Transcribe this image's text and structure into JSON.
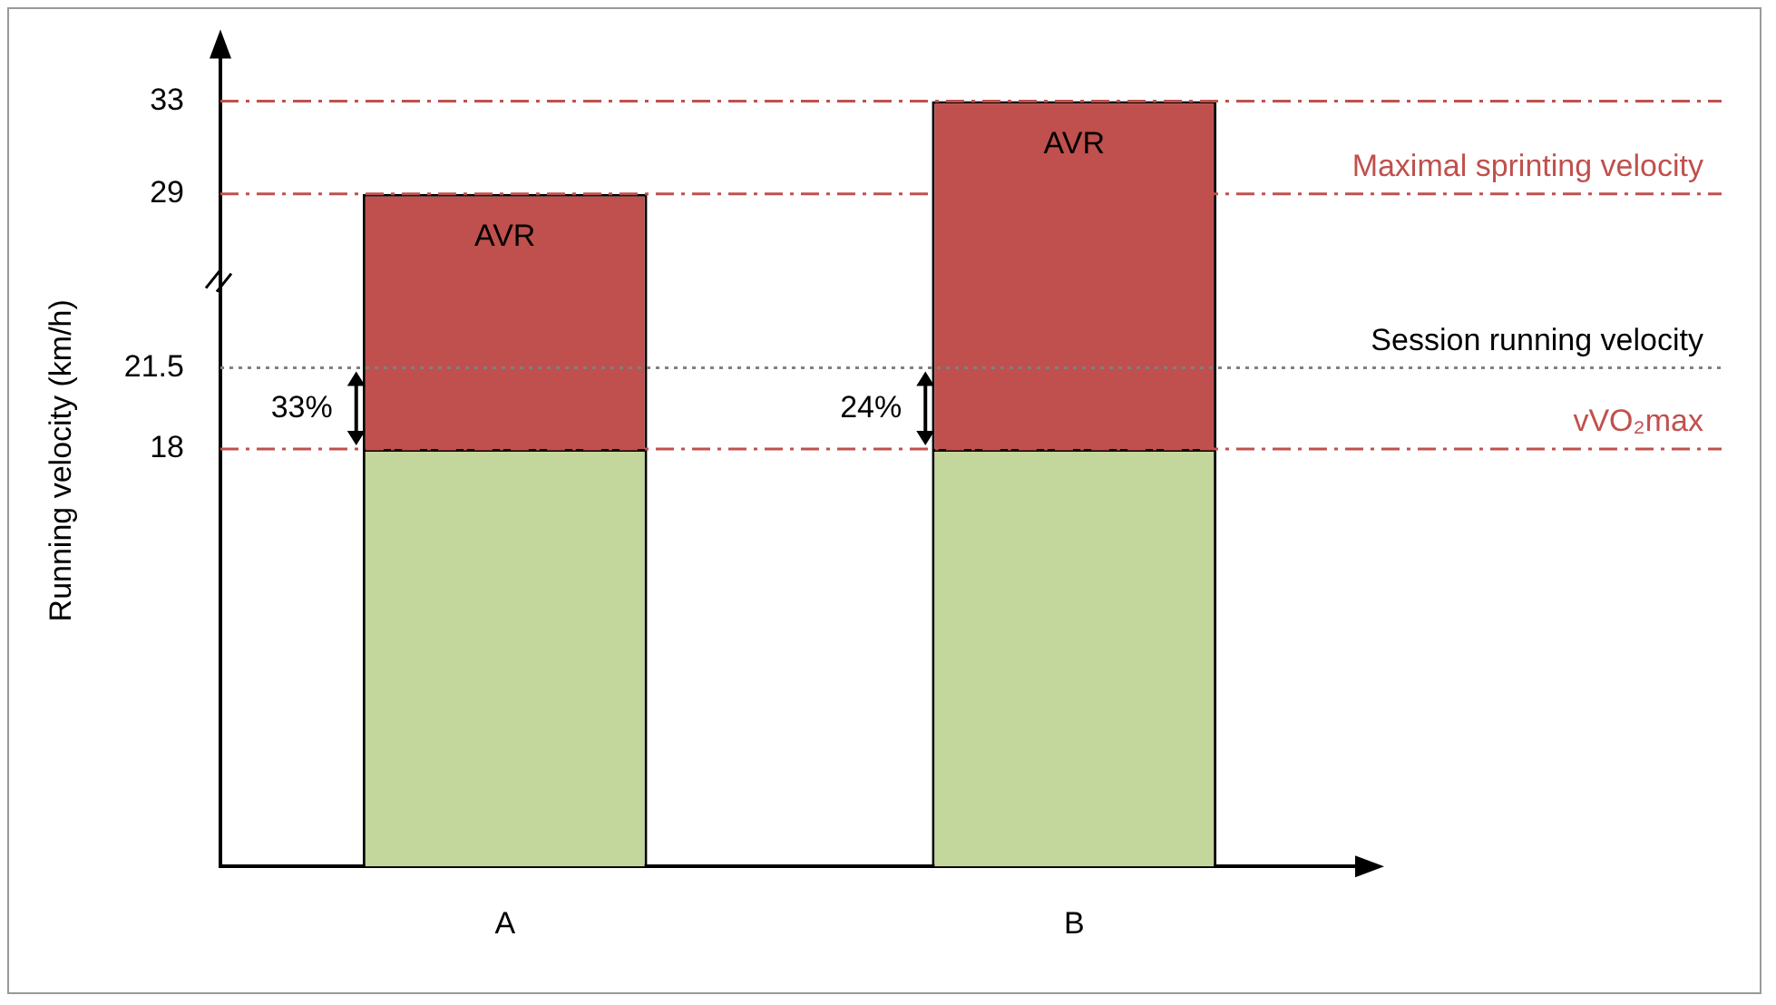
{
  "chart_data": {
    "type": "bar",
    "stacked": true,
    "categories": [
      "A",
      "B"
    ],
    "ylabel": "Running velocity (km/h)",
    "series": [
      {
        "color": "#c3d69b",
        "values": [
          18,
          18
        ]
      },
      {
        "color": "#c0504d",
        "values": [
          11,
          15
        ]
      }
    ],
    "ylim": [
      0,
      35
    ],
    "yticks": [
      18,
      21.5,
      29,
      33
    ],
    "grid": false,
    "legend": false,
    "ref_lines": [
      {
        "axis": "y",
        "value": 33,
        "color": "#c0504d",
        "line_style": "dashed"
      },
      {
        "axis": "y",
        "value": 29,
        "label": "Maximal sprinting velocity",
        "color": "#c0504d",
        "line_style": "dashed"
      },
      {
        "axis": "y",
        "value": 21.5,
        "label": "Session running velocity",
        "color": "#808080",
        "line_style": "dotted"
      },
      {
        "axis": "y",
        "value": 18,
        "label": "vVO₂max",
        "color": "#c0504d",
        "line_style": "dashed"
      }
    ],
    "annotations": [
      "AVR",
      "AVR",
      "33%",
      "24%"
    ]
  }
}
